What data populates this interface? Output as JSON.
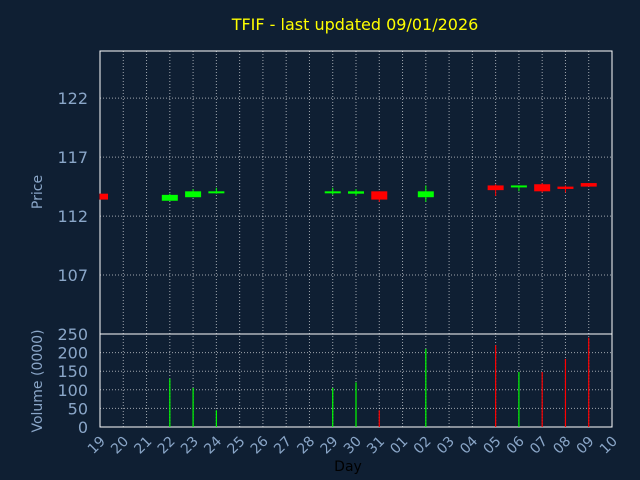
{
  "chart_data": {
    "type": "candlestick",
    "title": "TFIF - last updated 09/01/2026",
    "xlabel": "Day",
    "price_ylabel": "Price",
    "volume_ylabel": "Volume (0000)",
    "price_ylim": [
      102,
      126
    ],
    "price_yticks": [
      "107",
      "112",
      "117",
      "122"
    ],
    "volume_ylim": [
      0,
      250
    ],
    "volume_yticks": [
      "0",
      "50",
      "100",
      "150",
      "200",
      "250"
    ],
    "x_ticks": [
      "19",
      "20",
      "21",
      "22",
      "23",
      "24",
      "25",
      "26",
      "27",
      "28",
      "29",
      "30",
      "31",
      "01",
      "02",
      "03",
      "04",
      "05",
      "06",
      "07",
      "08",
      "09",
      "10"
    ],
    "grid": true,
    "colors": {
      "background": "#0f1f33",
      "axis": "#ffffff",
      "grid": "#ffffff",
      "title": "#ffff00",
      "label": "#8aa6c8",
      "up": "#00ff00",
      "down": "#ff0000"
    },
    "candles": [
      {
        "day": "19",
        "open": 113.9,
        "close": 113.4,
        "high": 113.9,
        "low": 113.4
      },
      {
        "day": "22",
        "open": 113.3,
        "close": 113.8,
        "high": 113.9,
        "low": 113.3
      },
      {
        "day": "23",
        "open": 113.6,
        "close": 114.1,
        "high": 114.3,
        "low": 113.6
      },
      {
        "day": "24",
        "open": 114.0,
        "close": 114.1,
        "high": 114.4,
        "low": 113.9
      },
      {
        "day": "29",
        "open": 114.0,
        "close": 114.1,
        "high": 114.4,
        "low": 113.8
      },
      {
        "day": "30",
        "open": 113.9,
        "close": 114.1,
        "high": 114.3,
        "low": 113.7
      },
      {
        "day": "31",
        "open": 114.1,
        "close": 113.4,
        "high": 114.1,
        "low": 113.2
      },
      {
        "day": "02",
        "open": 113.6,
        "close": 114.1,
        "high": 114.6,
        "low": 113.2
      },
      {
        "day": "05",
        "open": 114.6,
        "close": 114.2,
        "high": 114.7,
        "low": 113.7
      },
      {
        "day": "06",
        "open": 114.5,
        "close": 114.6,
        "high": 114.6,
        "low": 114.1
      },
      {
        "day": "07",
        "open": 114.7,
        "close": 114.1,
        "high": 114.8,
        "low": 114.0
      },
      {
        "day": "08",
        "open": 114.5,
        "close": 114.3,
        "high": 114.6,
        "low": 114.0
      },
      {
        "day": "09",
        "open": 114.8,
        "close": 114.5,
        "high": 114.8,
        "low": 114.5
      }
    ],
    "volume": [
      {
        "day": "22",
        "value": 130,
        "dir": "up"
      },
      {
        "day": "23",
        "value": 105,
        "dir": "up"
      },
      {
        "day": "24",
        "value": 45,
        "dir": "up"
      },
      {
        "day": "29",
        "value": 105,
        "dir": "up"
      },
      {
        "day": "30",
        "value": 120,
        "dir": "up"
      },
      {
        "day": "31",
        "value": 45,
        "dir": "down"
      },
      {
        "day": "02",
        "value": 210,
        "dir": "up"
      },
      {
        "day": "05",
        "value": 220,
        "dir": "down"
      },
      {
        "day": "06",
        "value": 148,
        "dir": "up"
      },
      {
        "day": "07",
        "value": 148,
        "dir": "down"
      },
      {
        "day": "08",
        "value": 183,
        "dir": "down"
      },
      {
        "day": "09",
        "value": 240,
        "dir": "down"
      }
    ]
  }
}
